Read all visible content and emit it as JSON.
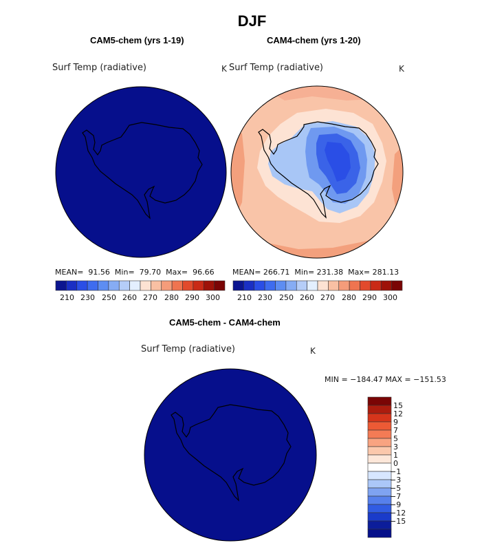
{
  "figure": {
    "title": "DJF"
  },
  "panel_left": {
    "title": "CAM5-chem (yrs 1-19)",
    "var_label": "Surf Temp (radiative)",
    "units": "K",
    "mean_label": "MEAN=",
    "mean_value": "91.56",
    "min_label": "Min=",
    "min_value": "79.70",
    "max_label": "Max=",
    "max_value": "96.66",
    "colorbar_ticks": [
      "210",
      "230",
      "250",
      "260",
      "270",
      "280",
      "290",
      "300"
    ]
  },
  "panel_right": {
    "title": "CAM4-chem (yrs 1-20)",
    "var_label": "Surf Temp (radiative)",
    "units": "K",
    "mean_label": "MEAN=",
    "mean_value": "266.71",
    "min_label": "Min=",
    "min_value": "231.38",
    "max_label": "Max=",
    "max_value": "281.13",
    "colorbar_ticks": [
      "210",
      "230",
      "250",
      "260",
      "270",
      "280",
      "290",
      "300"
    ]
  },
  "panel_diff": {
    "title": "CAM5-chem - CAM4-chem",
    "var_label": "Surf Temp (radiative)",
    "units": "K",
    "minmax_text": "MIN = −184.47 MAX = −151.53",
    "colorbar_ticks": [
      "15",
      "12",
      "9",
      "7",
      "5",
      "3",
      "1",
      "0",
      "−1",
      "−3",
      "−5",
      "−7",
      "−9",
      "−12",
      "−15"
    ]
  },
  "palette": {
    "sequential": [
      "#0c1590",
      "#1a2fc4",
      "#2a4ee6",
      "#3e6cef",
      "#5d8df2",
      "#86acf4",
      "#b5cdf8",
      "#e3efff",
      "#fde2d3",
      "#f9c0a3",
      "#f59c7a",
      "#ef7450",
      "#e24a2c",
      "#c92a16",
      "#9e1208",
      "#7a0505"
    ],
    "diverging": [
      "#7a0505",
      "#ac1c0e",
      "#d6351b",
      "#ec5a35",
      "#f37b55",
      "#f8a381",
      "#fbc8ac",
      "#fde7d9",
      "#ffffff",
      "#d7e6ff",
      "#abc7f8",
      "#7fa3f1",
      "#5680ec",
      "#315ce3",
      "#1a3bca",
      "#0c1d9a",
      "#05108a"
    ],
    "ocean_dark_blue": "#060f8c"
  }
}
